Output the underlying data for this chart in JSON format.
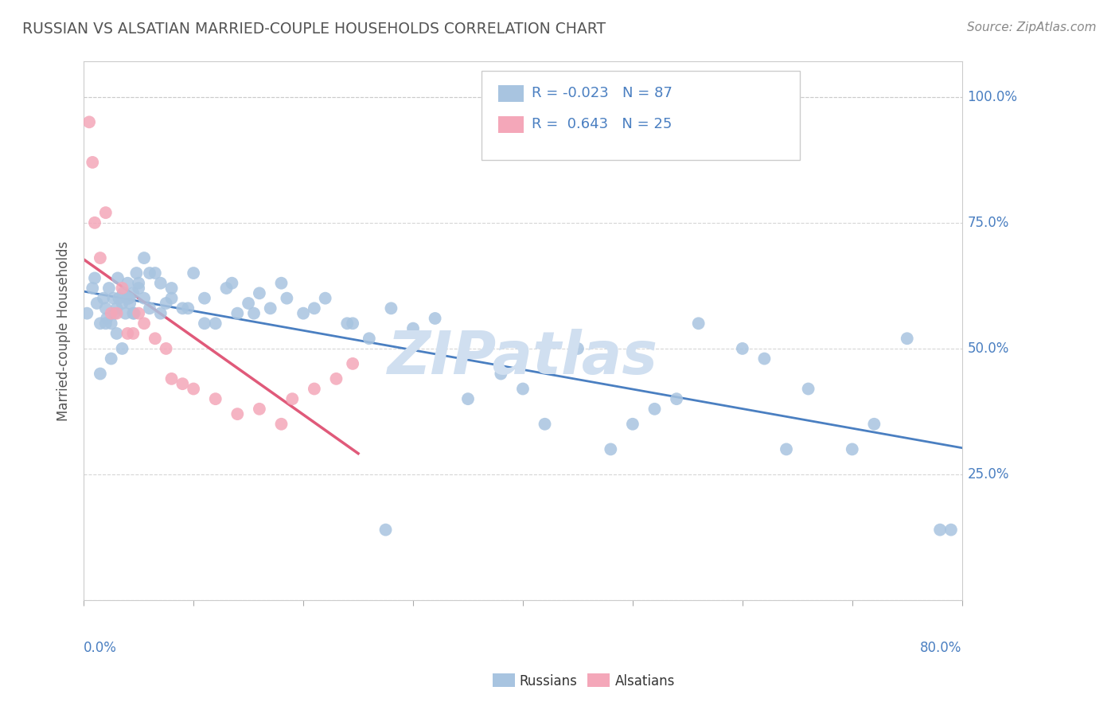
{
  "title": "RUSSIAN VS ALSATIAN MARRIED-COUPLE HOUSEHOLDS CORRELATION CHART",
  "source": "Source: ZipAtlas.com",
  "ylabel": "Married-couple Households",
  "legend_russian_R": "-0.023",
  "legend_russian_N": "87",
  "legend_alsatian_R": "0.643",
  "legend_alsatian_N": "25",
  "russian_color": "#a8c4e0",
  "alsatian_color": "#f4a7b9",
  "russian_line_color": "#4a7fc1",
  "alsatian_line_color": "#e05a7a",
  "background_color": "#ffffff",
  "watermark": "ZIPatlas",
  "watermark_color": "#d0dff0",
  "title_color": "#555555",
  "axis_label_color": "#4a7fc1",
  "legend_text_color": "#4a7fc1",
  "rus_x": [
    0.3,
    0.8,
    1.0,
    1.2,
    1.5,
    1.8,
    2.0,
    2.1,
    2.3,
    2.5,
    2.7,
    2.8,
    3.0,
    3.1,
    3.2,
    3.5,
    3.6,
    3.8,
    4.0,
    4.1,
    4.2,
    4.5,
    4.6,
    4.8,
    5.0,
    5.5,
    6.0,
    6.5,
    7.0,
    7.5,
    8.0,
    9.0,
    10.0,
    11.0,
    12.0,
    13.0,
    14.0,
    15.0,
    16.0,
    17.0,
    18.0,
    20.0,
    22.0,
    24.0,
    26.0,
    28.0,
    30.0,
    32.0,
    35.0,
    38.0,
    40.0,
    42.0,
    45.0,
    48.0,
    50.0,
    52.0,
    54.0,
    56.0,
    60.0,
    62.0,
    64.0,
    66.0,
    70.0,
    72.0,
    75.0,
    78.0,
    1.5,
    2.0,
    2.5,
    3.0,
    3.5,
    4.0,
    4.5,
    5.0,
    5.5,
    6.0,
    7.0,
    8.0,
    9.5,
    11.0,
    13.5,
    15.5,
    18.5,
    21.0,
    24.5,
    27.5,
    79.0
  ],
  "rus_y": [
    57,
    62,
    64,
    59,
    55,
    60,
    58,
    56,
    62,
    55,
    60,
    57,
    58,
    64,
    60,
    59,
    61,
    57,
    63,
    60,
    59,
    61,
    57,
    65,
    63,
    60,
    58,
    65,
    63,
    59,
    62,
    58,
    65,
    60,
    55,
    62,
    57,
    59,
    61,
    58,
    63,
    57,
    60,
    55,
    52,
    58,
    54,
    56,
    40,
    45,
    42,
    35,
    50,
    30,
    35,
    38,
    40,
    55,
    50,
    48,
    30,
    42,
    30,
    35,
    52,
    14,
    45,
    55,
    48,
    53,
    50,
    60,
    57,
    62,
    68,
    65,
    57,
    60,
    58,
    55,
    63,
    57,
    60,
    58,
    55,
    14,
    14
  ],
  "als_x": [
    0.5,
    0.8,
    1.0,
    1.5,
    2.0,
    2.5,
    3.0,
    3.5,
    4.0,
    4.5,
    5.0,
    5.5,
    6.5,
    7.5,
    8.0,
    9.0,
    10.0,
    12.0,
    14.0,
    16.0,
    18.0,
    19.0,
    21.0,
    23.0,
    24.5
  ],
  "als_y": [
    95,
    87,
    75,
    68,
    77,
    57,
    57,
    62,
    53,
    53,
    57,
    55,
    52,
    50,
    44,
    43,
    42,
    40,
    37,
    38,
    35,
    40,
    42,
    44,
    47
  ]
}
